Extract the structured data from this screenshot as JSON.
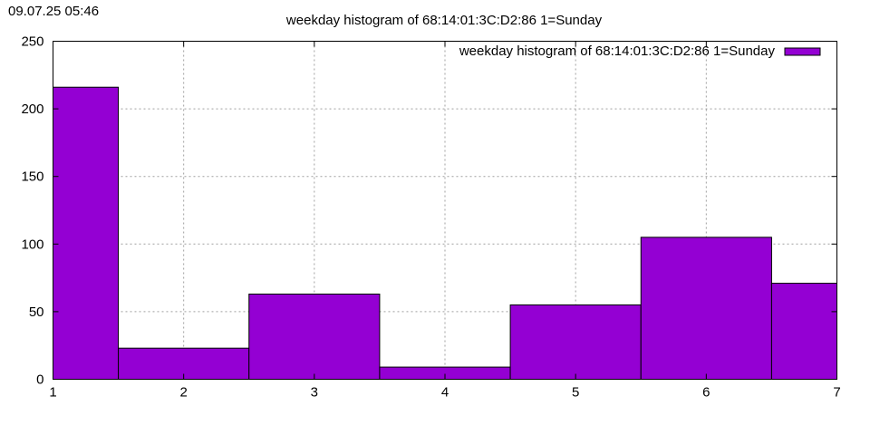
{
  "timestamp": "09.07.25 05:46",
  "chart_data": {
    "type": "bar",
    "title": "weekday histogram of 68:14:01:3C:D2:86 1=Sunday",
    "x": [
      1,
      2,
      3,
      4,
      5,
      6,
      7
    ],
    "series": [
      {
        "name": "weekday histogram of 68:14:01:3C:D2:86 1=Sunday",
        "values": [
          216,
          23,
          63,
          9,
          55,
          105,
          71
        ],
        "color": "#9400d3"
      }
    ],
    "xlim": [
      1,
      7
    ],
    "ylim": [
      0,
      250
    ],
    "xticks": [
      1,
      2,
      3,
      4,
      5,
      6,
      7
    ],
    "yticks": [
      0,
      50,
      100,
      150,
      200,
      250
    ],
    "grid": true,
    "legend_position": "top-right"
  }
}
